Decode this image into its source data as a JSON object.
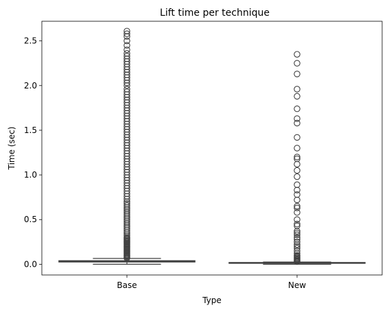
{
  "chart_data": {
    "type": "box",
    "title": "Lift time per technique",
    "xlabel": "Type",
    "ylabel": "Time (sec)",
    "categories": [
      "Base",
      "New"
    ],
    "ylim": [
      -0.12,
      2.72
    ],
    "yticks": [
      0.0,
      0.5,
      1.0,
      1.5,
      2.0,
      2.5
    ],
    "ytick_labels": [
      "0.0",
      "0.5",
      "1.0",
      "1.5",
      "2.0",
      "2.5"
    ],
    "grid": false,
    "box_color": "#3b75af",
    "line_color": "#3f3f3f",
    "boxes": [
      {
        "name": "Base",
        "whisker_low": 0.0,
        "q1": 0.025,
        "median": 0.033,
        "q3": 0.04,
        "whisker_high": 0.065,
        "outliers": [
          0.07,
          0.08,
          0.09,
          0.1,
          0.11,
          0.12,
          0.13,
          0.14,
          0.15,
          0.16,
          0.17,
          0.18,
          0.19,
          0.2,
          0.21,
          0.22,
          0.23,
          0.24,
          0.25,
          0.26,
          0.27,
          0.28,
          0.29,
          0.3,
          0.32,
          0.34,
          0.36,
          0.38,
          0.4,
          0.42,
          0.44,
          0.46,
          0.48,
          0.5,
          0.52,
          0.54,
          0.56,
          0.58,
          0.6,
          0.62,
          0.64,
          0.66,
          0.68,
          0.7,
          0.73,
          0.76,
          0.79,
          0.82,
          0.85,
          0.88,
          0.91,
          0.94,
          0.97,
          1.0,
          1.03,
          1.06,
          1.09,
          1.12,
          1.15,
          1.18,
          1.21,
          1.24,
          1.27,
          1.3,
          1.33,
          1.36,
          1.39,
          1.42,
          1.45,
          1.48,
          1.51,
          1.54,
          1.57,
          1.6,
          1.63,
          1.66,
          1.69,
          1.72,
          1.75,
          1.78,
          1.81,
          1.84,
          1.87,
          1.9,
          1.93,
          1.96,
          2.0,
          2.03,
          2.06,
          2.09,
          2.12,
          2.15,
          2.18,
          2.21,
          2.24,
          2.27,
          2.3,
          2.33,
          2.36,
          2.4,
          2.45,
          2.5,
          2.55,
          2.58,
          2.61
        ]
      },
      {
        "name": "New",
        "whisker_low": 0.0,
        "q1": 0.01,
        "median": 0.015,
        "q3": 0.02,
        "whisker_high": 0.025,
        "outliers": [
          0.03,
          0.04,
          0.05,
          0.06,
          0.07,
          0.08,
          0.09,
          0.1,
          0.12,
          0.15,
          0.18,
          0.2,
          0.22,
          0.25,
          0.28,
          0.3,
          0.33,
          0.35,
          0.37,
          0.43,
          0.45,
          0.5,
          0.58,
          0.63,
          0.65,
          0.72,
          0.78,
          0.83,
          0.89,
          0.98,
          1.05,
          1.12,
          1.18,
          1.2,
          1.3,
          1.42,
          1.58,
          1.63,
          1.74,
          1.88,
          1.96,
          2.13,
          2.25,
          2.35
        ]
      }
    ]
  }
}
